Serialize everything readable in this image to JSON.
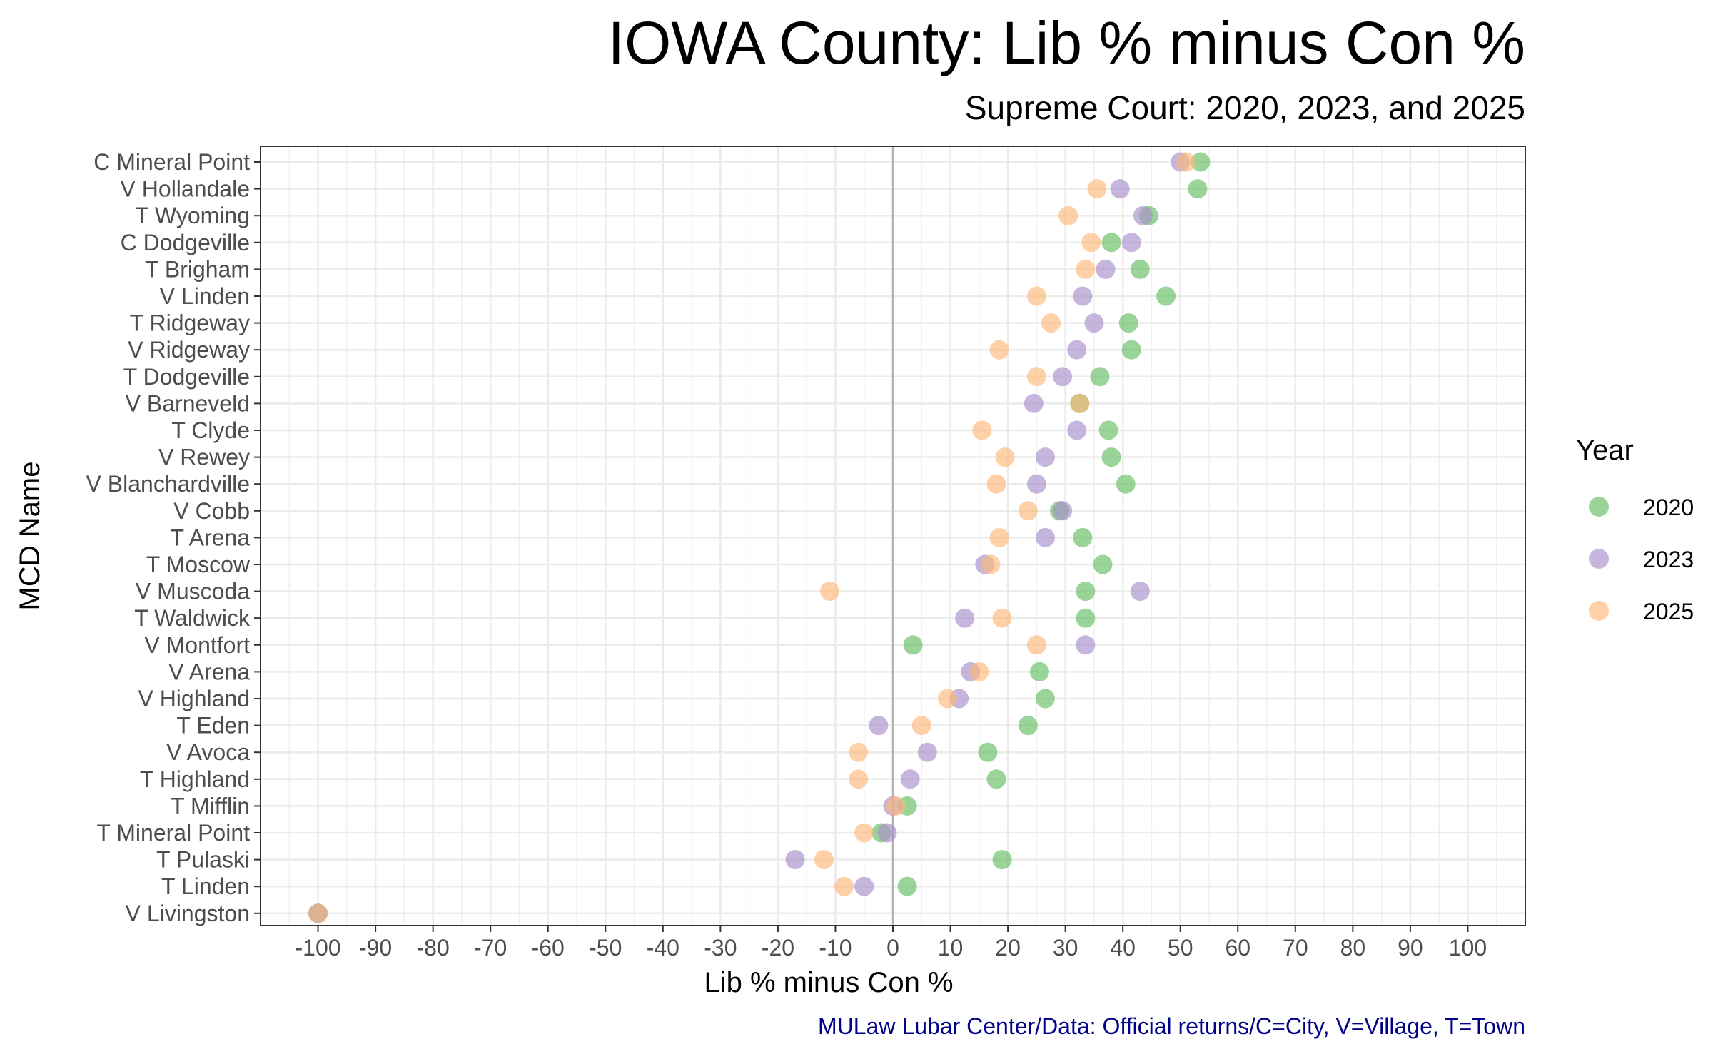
{
  "header": {
    "title": "IOWA County: Lib % minus Con %",
    "subtitle": "Supreme Court: 2020, 2023, and 2025"
  },
  "caption": "MULaw Lubar Center/Data: Official returns/C=City, V=Village, T=Town",
  "chart_data": {
    "type": "scatter",
    "xlabel": "Lib % minus Con %",
    "ylabel": "MCD Name",
    "xlim": [
      -110,
      110
    ],
    "xticks": [
      -100,
      -90,
      -80,
      -70,
      -60,
      -50,
      -40,
      -30,
      -20,
      -10,
      0,
      10,
      20,
      30,
      40,
      50,
      60,
      70,
      80,
      90,
      100
    ],
    "reference_line_x": 0,
    "grid": true,
    "legend": {
      "title": "Year",
      "placement": "right"
    },
    "categories": [
      "C Mineral Point",
      "V Hollandale",
      "T Wyoming",
      "C Dodgeville",
      "T Brigham",
      "V Linden",
      "T Ridgeway",
      "V Ridgeway",
      "T Dodgeville",
      "V Barneveld",
      "T Clyde",
      "V Rewey",
      "V Blanchardville",
      "V Cobb",
      "T Arena",
      "T Moscow",
      "V Muscoda",
      "T Waldwick",
      "V Montfort",
      "V Arena",
      "V Highland",
      "T Eden",
      "V Avoca",
      "T Highland",
      "T Mifflin",
      "T Mineral Point",
      "T Pulaski",
      "T Linden",
      "V Livingston"
    ],
    "series": [
      {
        "name": "2020",
        "color": "#66bd63",
        "values": [
          53.5,
          53,
          44.5,
          38,
          43,
          47.5,
          41,
          41.5,
          36,
          32.5,
          37.5,
          38,
          40.5,
          29,
          33,
          36.5,
          33.5,
          33.5,
          3.5,
          25.5,
          26.5,
          23.5,
          16.5,
          18,
          2.5,
          -2,
          19,
          2.5,
          -100
        ]
      },
      {
        "name": "2023",
        "color": "#a78fcb",
        "values": [
          50,
          39.5,
          43.5,
          41.5,
          37,
          33,
          35,
          32,
          29.5,
          24.5,
          32,
          26.5,
          25,
          29.5,
          26.5,
          16,
          43,
          12.5,
          33.5,
          13.5,
          11.5,
          -2.5,
          6,
          3,
          0,
          -1,
          -17,
          -5,
          -100
        ]
      },
      {
        "name": "2025",
        "color": "#fdb87a",
        "values": [
          51,
          35.5,
          30.5,
          34.5,
          33.5,
          25,
          27.5,
          18.5,
          25,
          32.5,
          15.5,
          19.5,
          18,
          23.5,
          18.5,
          17,
          -11,
          19,
          25,
          15,
          9.5,
          5,
          -6,
          -6,
          0.5,
          -5,
          -12,
          -8.5,
          -100
        ]
      }
    ]
  }
}
